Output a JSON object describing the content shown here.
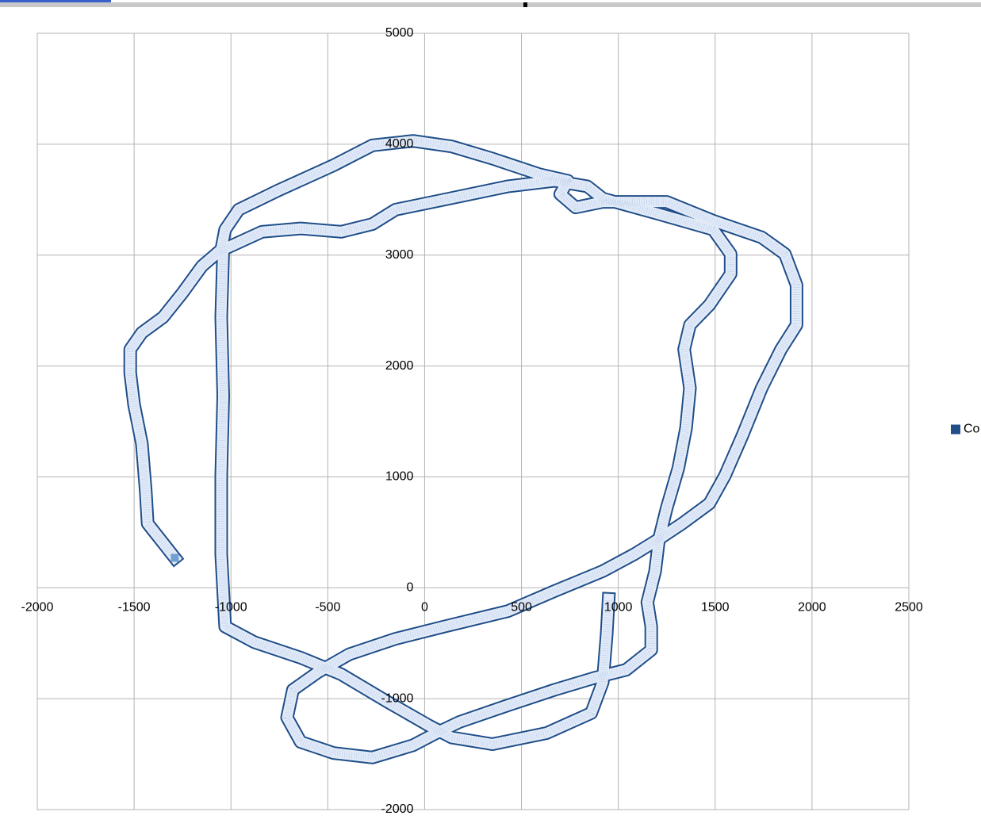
{
  "chart_data": {
    "type": "scatter",
    "xlim": [
      -2000,
      2500
    ],
    "xticks": [
      -2000,
      -1500,
      -1000,
      -500,
      0,
      500,
      1000,
      1500,
      2000,
      2500
    ],
    "ylim": [
      -2000,
      5000
    ],
    "yticks": [
      -2000,
      -1000,
      0,
      1000,
      2000,
      3000,
      4000,
      5000
    ],
    "grid": true,
    "legend": "right",
    "series": [
      {
        "name": "Co",
        "color": "#1f4e89",
        "x": [
          -1290,
          -1430,
          -1440,
          -1460,
          -1500,
          -1520,
          -1520,
          -1460,
          -1350,
          -1250,
          -1150,
          -1050,
          -1030,
          -960,
          -760,
          -470,
          -270,
          -60,
          140,
          350,
          590,
          740,
          700,
          780,
          920,
          1250,
          1490,
          1740,
          1860,
          1920,
          1920,
          1840,
          1740,
          1640,
          1550,
          1470,
          1330,
          1210,
          1080,
          920,
          670,
          430,
          100,
          -150,
          -390,
          -550,
          -680,
          -710,
          -640,
          -470,
          -270,
          -60,
          60,
          180,
          430,
          670,
          880,
          1040,
          1170,
          1170,
          1150,
          1190,
          1210,
          1250,
          1310,
          1350,
          1370,
          1340,
          1370,
          1470,
          1580,
          1580,
          1490,
          1210,
          920,
          840,
          670,
          430,
          100,
          -150,
          -270,
          -430,
          -640,
          -840,
          -1040,
          -1050,
          -1040,
          -1050,
          -1050,
          -1030,
          -880,
          -640,
          -430,
          -190,
          20,
          140,
          350,
          630,
          860,
          920,
          940,
          950
        ],
        "values": [
          270,
          580,
          870,
          1300,
          1650,
          1940,
          2150,
          2300,
          2440,
          2660,
          2900,
          3050,
          3230,
          3410,
          3580,
          3810,
          3990,
          4030,
          3980,
          3870,
          3730,
          3670,
          3550,
          3430,
          3480,
          3480,
          3310,
          3160,
          3010,
          2730,
          2370,
          2150,
          1800,
          1370,
          1010,
          760,
          580,
          440,
          300,
          150,
          -30,
          -210,
          -350,
          -460,
          -600,
          -760,
          -920,
          -1170,
          -1390,
          -1490,
          -1530,
          -1420,
          -1310,
          -1210,
          -1060,
          -920,
          -810,
          -740,
          -560,
          -350,
          -130,
          150,
          440,
          720,
          1080,
          1440,
          1800,
          2150,
          2370,
          2550,
          2830,
          3010,
          3230,
          3370,
          3510,
          3620,
          3670,
          3620,
          3500,
          3410,
          3280,
          3210,
          3240,
          3210,
          3050,
          2440,
          1730,
          1010,
          300,
          -350,
          -490,
          -630,
          -780,
          -1030,
          -1240,
          -1350,
          -1410,
          -1310,
          -1130,
          -850,
          -420,
          -100
        ]
      }
    ]
  }
}
